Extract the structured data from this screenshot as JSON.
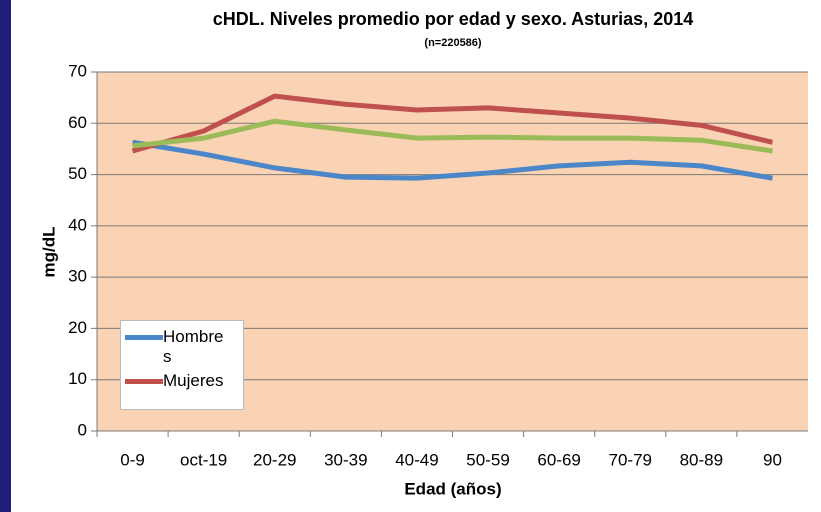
{
  "chart_data": {
    "type": "line",
    "title": "cHDL. Niveles promedio por edad y sexo. Asturias, 2014",
    "subtitle": "(n=220586)",
    "x_label": "Edad (años)",
    "y_label": "mg/dL",
    "categories": [
      "0-9",
      "oct-19",
      "20-29",
      "30-39",
      "40-49",
      "50-59",
      "60-69",
      "70-79",
      "80-89",
      "90"
    ],
    "series": [
      {
        "name": "Hombres",
        "color": "#4a86c8",
        "values": [
          56.3,
          54,
          51.3,
          49.5,
          49.3,
          50.3,
          51.7,
          52.4,
          51.7,
          49.3
        ]
      },
      {
        "name": "Mujeres",
        "color": "#c0504d",
        "values": [
          54.6,
          58.5,
          65.3,
          63.7,
          62.6,
          63,
          62,
          61,
          59.6,
          56.3
        ]
      },
      {
        "color": "#9bbb59",
        "values": [
          55.6,
          57.1,
          60.4,
          58.7,
          57.1,
          57.3,
          57.1,
          57.1,
          56.7,
          54.6
        ]
      }
    ],
    "ylim": [
      0,
      70
    ],
    "yticks": [
      0,
      10,
      20,
      30,
      40,
      50,
      60,
      70
    ],
    "grid": true,
    "legend": "lower-left",
    "plot_background": "#f9d3b3"
  }
}
